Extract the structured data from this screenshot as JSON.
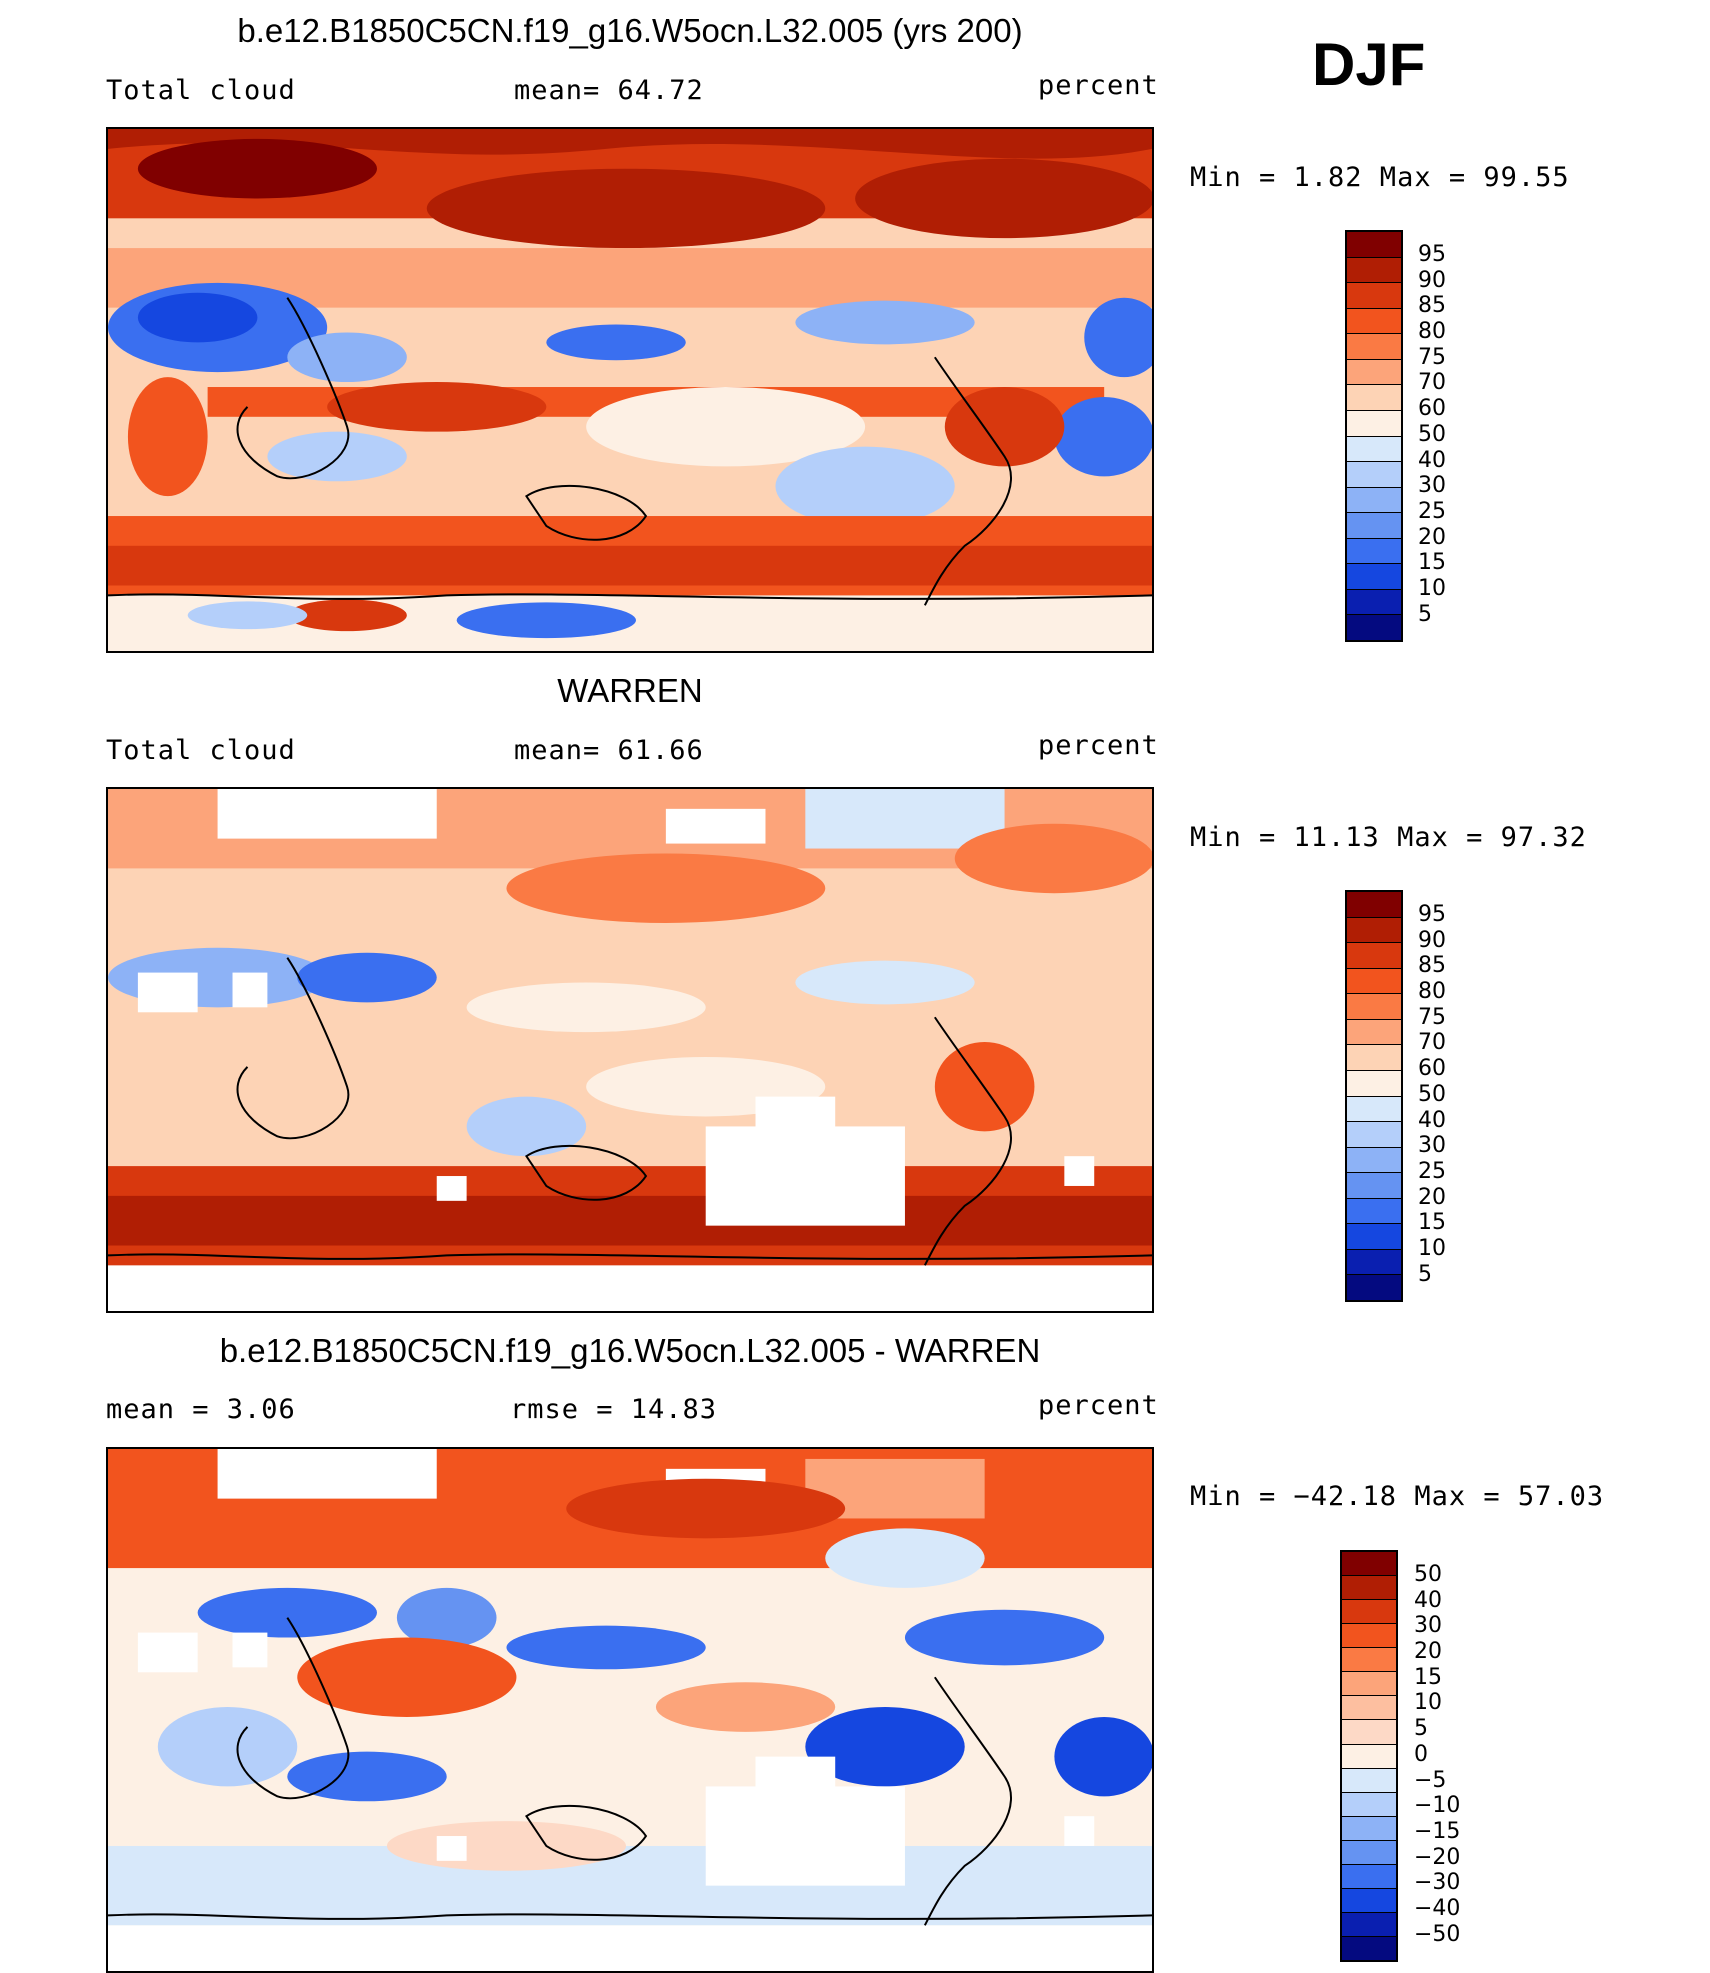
{
  "season": "DJF",
  "panels": [
    {
      "title": "b.e12.B1850C5CN.f19_g16.W5ocn.L32.005 (yrs 200)",
      "left_label": "Total cloud",
      "center_label": "mean=   64.72",
      "units": "percent",
      "stats": "Min =    1.82 Max =   99.55",
      "colorbar_labels": [
        "95",
        "90",
        "85",
        "80",
        "75",
        "70",
        "60",
        "50",
        "40",
        "30",
        "25",
        "20",
        "15",
        "10",
        "5"
      ]
    },
    {
      "title": "WARREN",
      "left_label": "Total cloud",
      "center_label": "mean=   61.66",
      "units": "percent",
      "stats": "Min =   11.13 Max =   97.32",
      "colorbar_labels": [
        "95",
        "90",
        "85",
        "80",
        "75",
        "70",
        "60",
        "50",
        "40",
        "30",
        "25",
        "20",
        "15",
        "10",
        "5"
      ]
    },
    {
      "title": "b.e12.B1850C5CN.f19_g16.W5ocn.L32.005 - WARREN",
      "left_label": "mean =    3.06",
      "center_label": "rmse =   14.83",
      "units": "percent",
      "stats": "Min = −42.18 Max =   57.03",
      "colorbar_labels": [
        "50",
        "40",
        "30",
        "20",
        "15",
        "10",
        "5",
        "0",
        "−5",
        "−10",
        "−15",
        "−20",
        "−30",
        "−40",
        "−50"
      ]
    }
  ],
  "colors": {
    "abs_scale": [
      "#800000",
      "#b01e04",
      "#d8380e",
      "#f2541e",
      "#fa7a44",
      "#fca47a",
      "#fdd3b5",
      "#fdf0e4",
      "#d7e8fa",
      "#b4cffa",
      "#8db2f6",
      "#6593f2",
      "#3a6ff0",
      "#1547e0",
      "#0a1fb0",
      "#040a80"
    ],
    "diff_scale": [
      "#800000",
      "#b01e04",
      "#d8380e",
      "#f2541e",
      "#fa7a44",
      "#fca47a",
      "#fdbfa0",
      "#fdd9c6",
      "#fdf0e4",
      "#d7e8fa",
      "#b4cffa",
      "#8db2f6",
      "#6593f2",
      "#3a6ff0",
      "#1547e0",
      "#0a1fb0",
      "#040a80"
    ]
  },
  "chart_data": [
    {
      "type": "heatmap",
      "title": "b.e12.B1850C5CN.f19_g16.W5ocn.L32.005 (yrs 200)",
      "variable": "Total cloud",
      "units": "percent",
      "mean": 64.72,
      "min": 1.82,
      "max": 99.55,
      "colorbar_levels": [
        5,
        10,
        15,
        20,
        25,
        30,
        40,
        50,
        60,
        70,
        75,
        80,
        85,
        90,
        95
      ]
    },
    {
      "type": "heatmap",
      "title": "WARREN",
      "variable": "Total cloud",
      "units": "percent",
      "mean": 61.66,
      "min": 11.13,
      "max": 97.32,
      "colorbar_levels": [
        5,
        10,
        15,
        20,
        25,
        30,
        40,
        50,
        60,
        70,
        75,
        80,
        85,
        90,
        95
      ]
    },
    {
      "type": "heatmap",
      "title": "b.e12.B1850C5CN.f19_g16.W5ocn.L32.005 - WARREN",
      "units": "percent",
      "mean": 3.06,
      "rmse": 14.83,
      "min": -42.18,
      "max": 57.03,
      "colorbar_levels": [
        -50,
        -40,
        -30,
        -20,
        -15,
        -10,
        -5,
        0,
        5,
        10,
        15,
        20,
        30,
        40,
        50
      ]
    }
  ]
}
